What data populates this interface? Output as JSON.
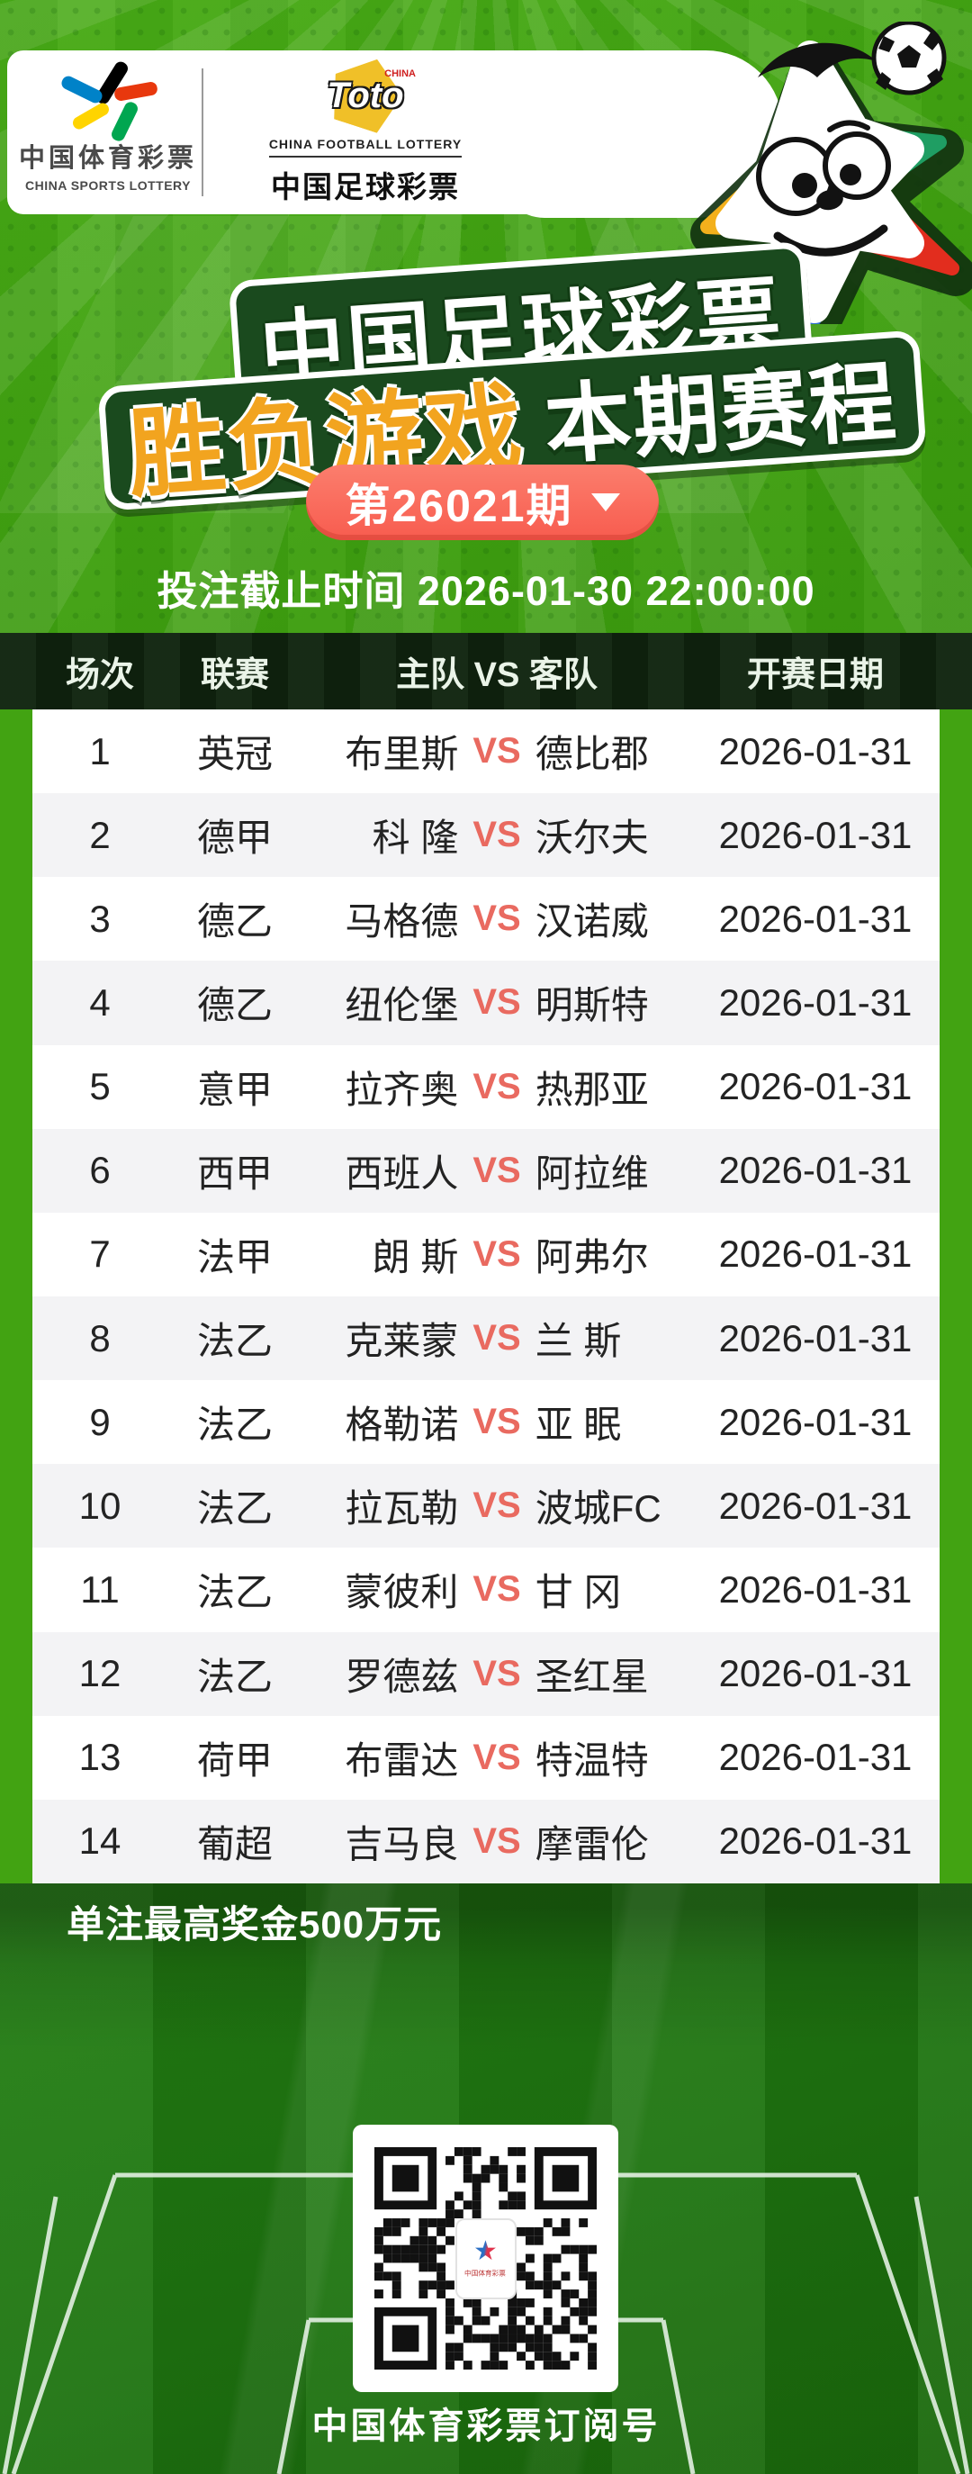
{
  "brand": {
    "sports_lottery": {
      "zh": "中国体育彩票",
      "en": "CHINA SPORTS LOTTERY"
    },
    "football_lottery": {
      "mark": "Toto",
      "mark_tag": "CHINA",
      "en": "CHINA FOOTBALL LOTTERY",
      "zh": "中国足球彩票"
    }
  },
  "title": {
    "line1": "中国足球彩票",
    "line2_highlight": "胜负游戏",
    "line2_rest": "本期赛程"
  },
  "issue": {
    "label": "第26021期"
  },
  "deadline": "投注截止时间 2026-01-30 22:00:00",
  "table": {
    "columns": [
      "场次",
      "联赛",
      "主队 VS 客队",
      "开赛日期"
    ],
    "vs_label": "VS",
    "rows": [
      {
        "no": "1",
        "league": "英冠",
        "home": "布里斯",
        "away": "德比郡",
        "date": "2026-01-31"
      },
      {
        "no": "2",
        "league": "德甲",
        "home": "科 隆",
        "away": "沃尔夫",
        "date": "2026-01-31"
      },
      {
        "no": "3",
        "league": "德乙",
        "home": "马格德",
        "away": "汉诺威",
        "date": "2026-01-31"
      },
      {
        "no": "4",
        "league": "德乙",
        "home": "纽伦堡",
        "away": "明斯特",
        "date": "2026-01-31"
      },
      {
        "no": "5",
        "league": "意甲",
        "home": "拉齐奥",
        "away": "热那亚",
        "date": "2026-01-31"
      },
      {
        "no": "6",
        "league": "西甲",
        "home": "西班人",
        "away": "阿拉维",
        "date": "2026-01-31"
      },
      {
        "no": "7",
        "league": "法甲",
        "home": "朗 斯",
        "away": "阿弗尔",
        "date": "2026-01-31"
      },
      {
        "no": "8",
        "league": "法乙",
        "home": "克莱蒙",
        "away": "兰 斯",
        "date": "2026-01-31"
      },
      {
        "no": "9",
        "league": "法乙",
        "home": "格勒诺",
        "away": "亚 眠",
        "date": "2026-01-31"
      },
      {
        "no": "10",
        "league": "法乙",
        "home": "拉瓦勒",
        "away": "波城FC",
        "date": "2026-01-31"
      },
      {
        "no": "11",
        "league": "法乙",
        "home": "蒙彼利",
        "away": "甘 冈",
        "date": "2026-01-31"
      },
      {
        "no": "12",
        "league": "法乙",
        "home": "罗德兹",
        "away": "圣红星",
        "date": "2026-01-31"
      },
      {
        "no": "13",
        "league": "荷甲",
        "home": "布雷达",
        "away": "特温特",
        "date": "2026-01-31"
      },
      {
        "no": "14",
        "league": "葡超",
        "home": "吉马良",
        "away": "摩雷伦",
        "date": "2026-01-31"
      }
    ]
  },
  "footer": {
    "prize_note": "单注最高奖金500万元",
    "qr_caption": "中国体育彩票订阅号",
    "qr_center_label": "中国体育彩票"
  },
  "colors": {
    "bg_green": "#42a312",
    "sticker_green": "#1a4a1e",
    "highlight_orange": "#f2a41f",
    "pill_red": "#f9695c",
    "vs_red": "#e96a60",
    "field_green": "#1e7410",
    "toto_yellow": "#f0c028"
  }
}
